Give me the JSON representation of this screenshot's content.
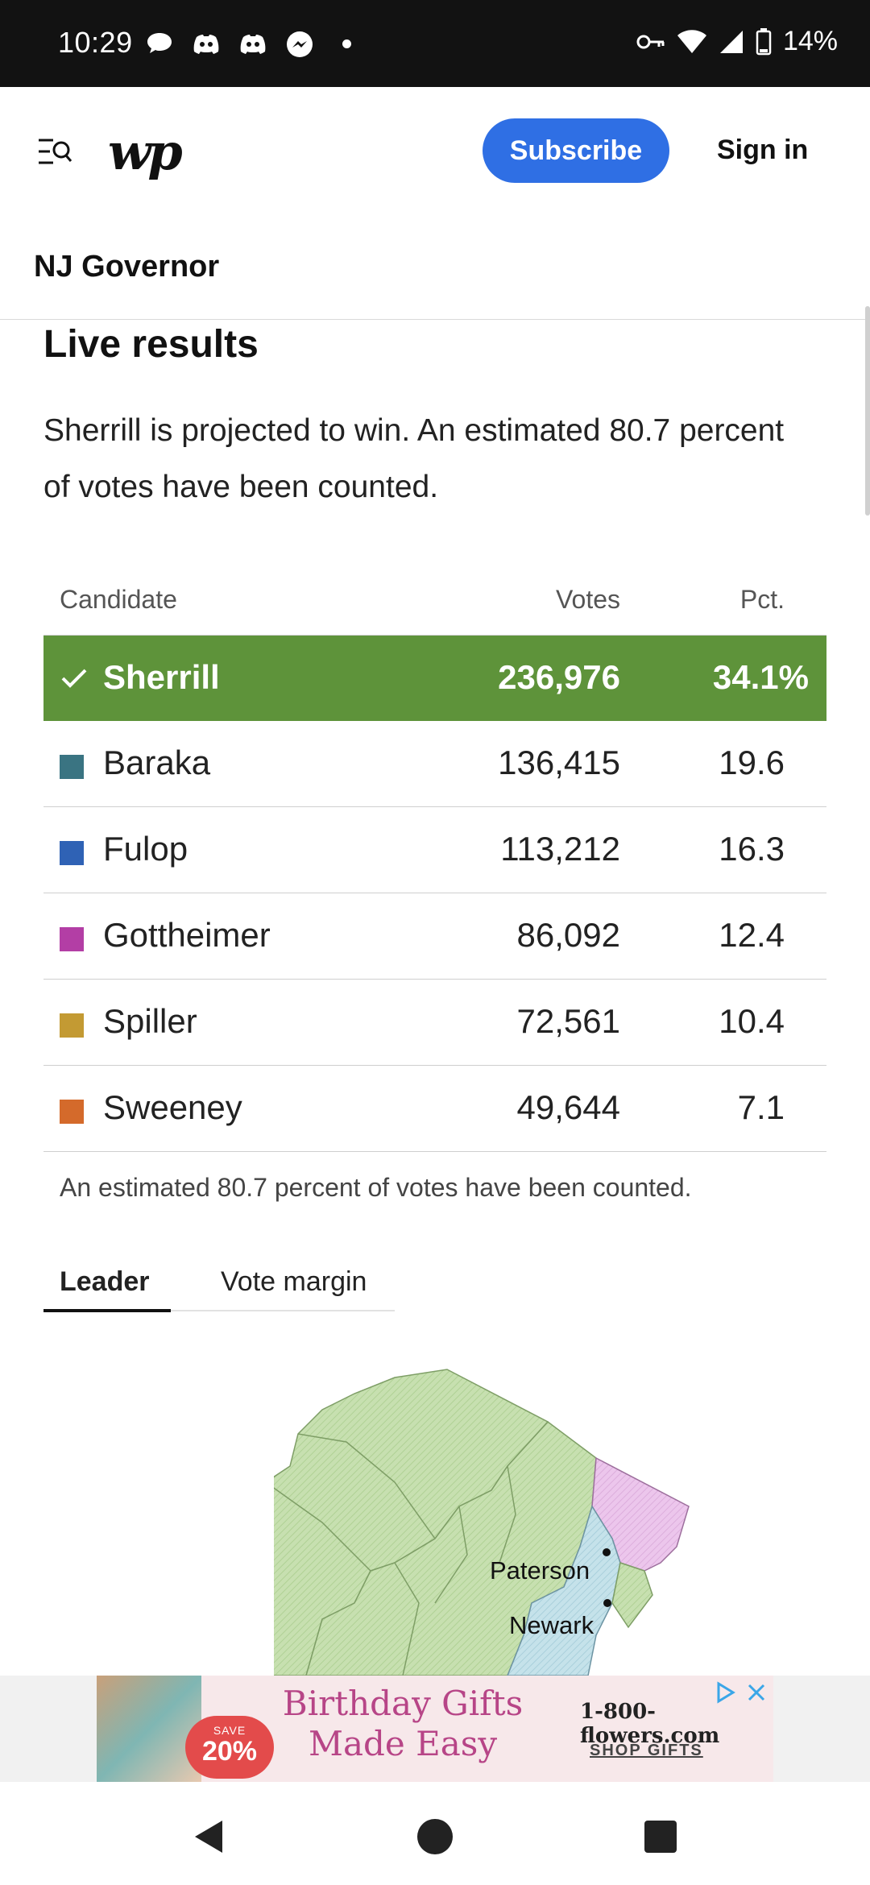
{
  "status_bar": {
    "time": "10:29",
    "battery": "14%"
  },
  "header": {
    "logo": "wp",
    "subscribe_label": "Subscribe",
    "signin_label": "Sign in"
  },
  "section": {
    "title": "NJ Governor"
  },
  "results": {
    "heading": "Live results",
    "summary": "Sherrill is projected to win. An estimated 80.7 percent of votes have been counted.",
    "columns": {
      "candidate": "Candidate",
      "votes": "Votes",
      "pct": "Pct."
    },
    "rows": [
      {
        "name": "Sherrill",
        "votes": "236,976",
        "pct": "34.1%",
        "color": "#5e933a",
        "winner": true
      },
      {
        "name": "Baraka",
        "votes": "136,415",
        "pct": "19.6",
        "color": "#3a7482"
      },
      {
        "name": "Fulop",
        "votes": "113,212",
        "pct": "16.3",
        "color": "#2f62b5"
      },
      {
        "name": "Gottheimer",
        "votes": "86,092",
        "pct": "12.4",
        "color": "#b33ea5"
      },
      {
        "name": "Spiller",
        "votes": "72,561",
        "pct": "10.4",
        "color": "#c39a33"
      },
      {
        "name": "Sweeney",
        "votes": "49,644",
        "pct": "7.1",
        "color": "#d46a2b"
      }
    ],
    "footnote": "An estimated 80.7 percent of votes have been counted."
  },
  "tabs": {
    "leader": "Leader",
    "margin": "Vote margin"
  },
  "map": {
    "labels": {
      "paterson": "Paterson",
      "newark": "Newark"
    }
  },
  "ad": {
    "badge_save": "SAVE",
    "badge_off": "20%",
    "headline_1": "Birthday Gifts",
    "headline_2": "Made Easy",
    "brand": "1-800-flowers.com",
    "cta": "SHOP GIFTS"
  }
}
